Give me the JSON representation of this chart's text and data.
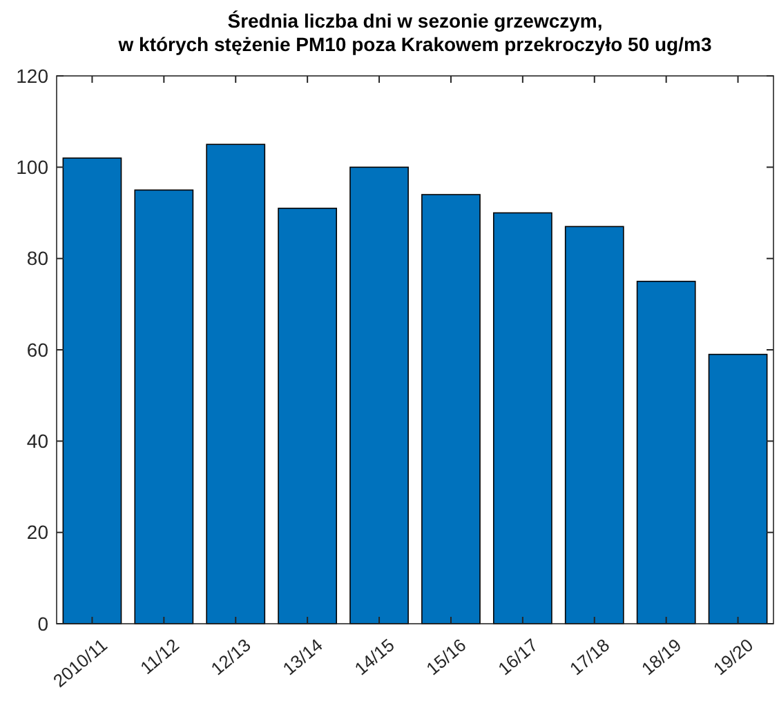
{
  "chart_data": {
    "type": "bar",
    "title": "Średnia liczba dni w sezonie grzewczym,\nw których stężenie PM10 poza Krakowem przekroczyło 50 ug/m3",
    "categories": [
      "2010/11",
      "11/12",
      "12/13",
      "13/14",
      "14/15",
      "15/16",
      "16/17",
      "17/18",
      "18/19",
      "19/20"
    ],
    "values": [
      102,
      95,
      105,
      91,
      100,
      94,
      90,
      87,
      75,
      59
    ],
    "color": "#0072bd",
    "ylim": [
      0,
      120
    ],
    "yticks": [
      0,
      20,
      40,
      60,
      80,
      100,
      120
    ],
    "grid": false
  }
}
